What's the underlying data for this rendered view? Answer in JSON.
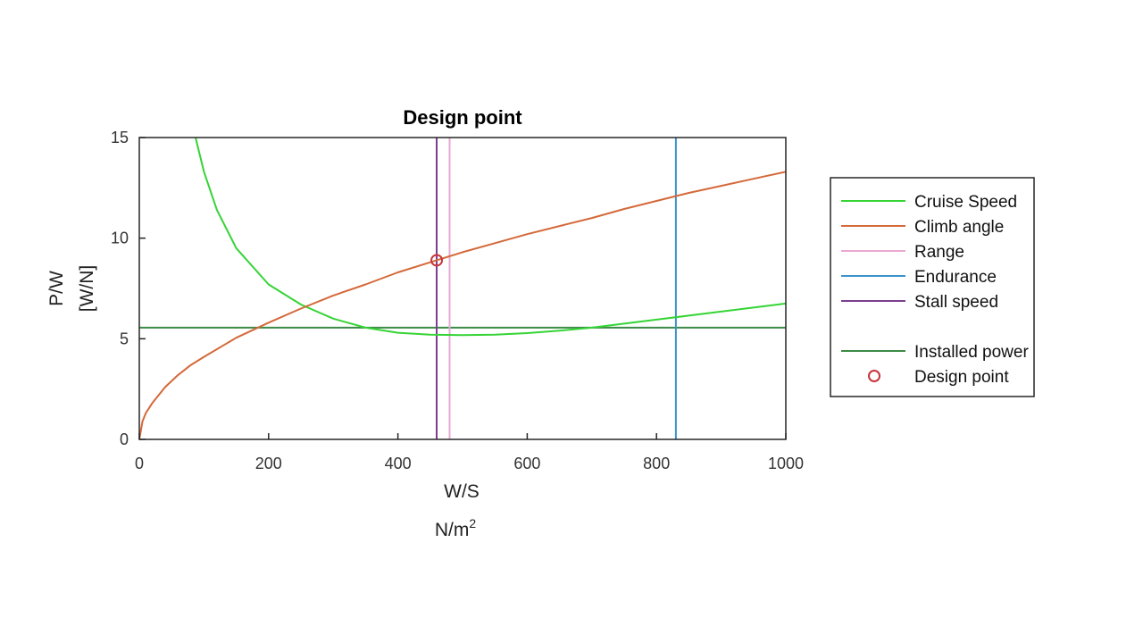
{
  "chart_data": {
    "type": "line",
    "title": "Design point",
    "xlabel": [
      "W/S",
      "N/m"
    ],
    "xlabel_superscript": "2",
    "ylabel": [
      "P/W",
      "[W/N]"
    ],
    "xlim": [
      0,
      1000
    ],
    "ylim": [
      0,
      15
    ],
    "xticks": [
      0,
      200,
      400,
      600,
      800,
      1000
    ],
    "yticks": [
      0,
      5,
      10,
      15
    ],
    "grid": false,
    "legend_position": "right, outside",
    "series": [
      {
        "name": "Cruise Speed",
        "color": "#35d435",
        "x": [
          87,
          100,
          120,
          150,
          200,
          250,
          300,
          350,
          400,
          450,
          500,
          550,
          600,
          650,
          700,
          750,
          800,
          850,
          900,
          950,
          1000
        ],
        "y": [
          15.0,
          13.3,
          11.4,
          9.5,
          7.7,
          6.7,
          6.0,
          5.55,
          5.3,
          5.2,
          5.18,
          5.2,
          5.28,
          5.4,
          5.55,
          5.75,
          5.95,
          6.15,
          6.35,
          6.55,
          6.75
        ]
      },
      {
        "name": "Climb angle",
        "color": "#d4693a",
        "x": [
          0,
          5,
          10,
          20,
          40,
          60,
          80,
          100,
          150,
          200,
          250,
          300,
          350,
          400,
          450,
          500,
          550,
          600,
          650,
          700,
          750,
          800,
          850,
          900,
          950,
          1000
        ],
        "y": [
          0,
          0.9,
          1.3,
          1.8,
          2.6,
          3.2,
          3.7,
          4.1,
          5.05,
          5.8,
          6.5,
          7.15,
          7.7,
          8.3,
          8.8,
          9.3,
          9.75,
          10.2,
          10.6,
          11.0,
          11.45,
          11.85,
          12.25,
          12.6,
          12.95,
          13.3
        ]
      },
      {
        "name": "Range",
        "color": "#e9a9d3",
        "x": [
          480,
          480
        ],
        "y": [
          0,
          15
        ]
      },
      {
        "name": "Endurance",
        "color": "#3a93c9",
        "x": [
          830,
          830
        ],
        "y": [
          0,
          15
        ]
      },
      {
        "name": "Stall speed",
        "color": "#7b3f8e",
        "x": [
          460,
          460
        ],
        "y": [
          0,
          15
        ]
      },
      {
        "name": "Installed power",
        "color": "#3c8a45",
        "x": [
          0,
          1000
        ],
        "y": [
          5.55,
          5.55
        ]
      },
      {
        "name": "Design point",
        "color": "#c8353a",
        "marker": "circle",
        "x": [
          460
        ],
        "y": [
          8.9
        ]
      }
    ],
    "legend": [
      "Cruise Speed",
      "Climb angle",
      "Range",
      "Endurance",
      "Stall speed",
      "",
      "Installed power",
      "Design point"
    ]
  }
}
